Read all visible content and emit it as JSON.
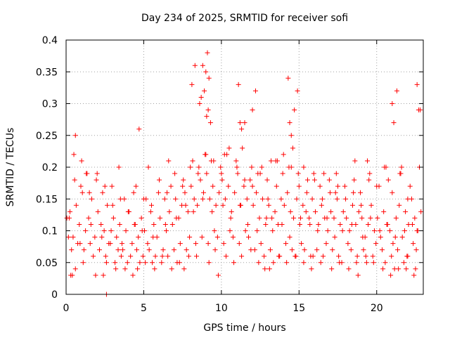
{
  "chart_data": {
    "type": "scatter",
    "title": "Day 234 of 2025, SRMTID for receiver sofi",
    "xlabel": "GPS time / hours",
    "ylabel": "SRMTID / TECUs",
    "xlim": [
      0,
      23
    ],
    "ylim": [
      0,
      0.4
    ],
    "xticks": [
      0,
      5,
      10,
      15,
      20
    ],
    "xtick_labels": [
      "0",
      "5",
      "10",
      "15",
      "20"
    ],
    "yticks": [
      0,
      0.05,
      0.1,
      0.15,
      0.2,
      0.25,
      0.3,
      0.35,
      0.4
    ],
    "ytick_labels": [
      "0",
      "0.05",
      "0.1",
      "0.15",
      "0.2",
      "0.25",
      "0.3",
      "0.35",
      "0.4"
    ],
    "grid": true,
    "legend": "none",
    "marker": "plus",
    "color": "#ff0000",
    "series": [
      {
        "name": "SRMTID",
        "x": [
          0.05,
          0.25,
          0.45,
          0.65,
          0.85,
          1.05,
          1.25,
          1.45,
          1.65,
          1.85,
          2.05,
          2.25,
          2.45,
          2.65,
          2.85,
          3.05,
          3.25,
          3.45,
          3.65,
          3.85,
          4.05,
          4.25,
          4.45,
          4.65,
          4.85,
          5.05,
          5.25,
          5.45,
          5.65,
          5.85,
          6.05,
          6.25,
          6.45,
          6.65,
          6.85,
          7.05,
          7.25,
          7.45,
          7.65,
          7.85,
          8.05,
          8.25,
          8.45,
          8.65,
          8.85,
          9.05,
          9.25,
          9.45,
          9.65,
          9.85,
          10.05,
          10.25,
          10.45,
          10.65,
          10.85,
          11.05,
          11.25,
          11.45,
          11.65,
          11.85,
          12.05,
          12.25,
          12.45,
          12.65,
          12.85,
          13.05,
          13.25,
          13.45,
          13.65,
          13.85,
          14.05,
          14.25,
          14.45,
          14.65,
          14.85,
          15.05,
          15.25,
          15.45,
          15.65,
          15.85,
          16.05,
          16.25,
          16.45,
          16.65,
          16.85,
          17.05,
          17.25,
          17.45,
          17.65,
          17.85,
          18.05,
          18.25,
          18.45,
          18.65,
          18.85,
          19.05,
          19.25,
          19.45,
          19.65,
          19.85,
          20.05,
          20.25,
          20.45,
          20.65,
          20.85,
          21.05,
          21.25,
          21.45,
          21.65,
          21.85,
          22.05,
          22.25,
          22.45,
          22.65,
          22.85,
          0.15,
          0.35,
          0.55,
          0.75,
          0.95,
          1.15,
          1.35,
          1.55,
          1.75,
          1.95,
          2.15,
          2.35,
          2.55,
          2.75,
          2.95,
          3.15,
          3.35,
          3.55,
          3.75,
          3.95,
          4.15,
          4.35,
          4.55,
          4.75,
          4.95,
          5.15,
          5.35,
          5.55,
          5.75,
          5.95,
          6.15,
          6.35,
          6.55,
          6.75,
          6.95,
          7.15,
          7.35,
          7.55,
          7.75,
          7.95,
          8.15,
          8.35,
          8.55,
          8.75,
          8.95,
          9.15,
          9.35,
          9.55,
          9.75,
          9.95,
          10.15,
          10.35,
          10.55,
          10.75,
          10.95,
          11.15,
          11.35,
          11.55,
          11.75,
          11.95,
          12.15,
          12.35,
          12.55,
          12.75,
          12.95,
          13.15,
          13.35,
          13.55,
          13.75,
          13.95,
          14.15,
          14.35,
          14.55,
          14.75,
          14.95,
          15.15,
          15.35,
          15.55,
          15.75,
          15.95,
          16.15,
          16.35,
          16.55,
          16.75,
          16.95,
          17.15,
          17.35,
          17.55,
          17.75,
          17.95,
          18.15,
          18.35,
          18.55,
          18.75,
          18.95,
          19.15,
          19.35,
          19.55,
          19.75,
          19.95,
          20.15,
          20.35,
          20.55,
          20.75,
          20.95,
          21.15,
          21.35,
          21.55,
          21.75,
          21.95,
          22.15,
          22.35,
          22.55,
          22.75,
          0.5,
          1.0,
          1.5,
          2.0,
          2.5,
          3.0,
          3.5,
          4.0,
          4.5,
          5.0,
          5.5,
          6.0,
          6.5,
          7.0,
          7.5,
          8.0,
          8.5,
          9.0,
          9.5,
          10.0,
          10.5,
          11.0,
          11.5,
          12.0,
          12.5,
          13.0,
          13.5,
          14.0,
          14.5,
          15.0,
          15.5,
          16.0,
          16.5,
          17.0,
          17.5,
          18.0,
          18.5,
          19.0,
          19.5,
          20.0,
          20.5,
          21.0,
          21.5,
          22.0,
          22.5,
          0.3,
          0.6,
          1.1,
          1.9,
          2.6,
          3.2,
          3.8,
          4.3,
          5.1,
          5.7,
          6.2,
          6.8,
          7.3,
          7.9,
          8.4,
          9.2,
          9.6,
          10.3,
          10.8,
          11.3,
          11.9,
          12.4,
          13.1,
          13.7,
          14.2,
          14.8,
          15.3,
          15.9,
          16.4,
          17.1,
          17.6,
          18.2,
          18.7,
          19.3,
          19.8,
          20.4,
          20.9,
          21.4,
          22.0,
          22.6,
          0.2,
          0.9,
          1.6,
          2.3,
          2.9,
          3.6,
          4.4,
          4.9,
          5.6,
          6.4,
          7.1,
          7.7,
          8.2,
          8.8,
          9.4,
          10.1,
          10.6,
          11.2,
          11.7,
          12.3,
          12.9,
          13.3,
          13.9,
          14.4,
          15.1,
          15.7,
          16.2,
          16.8,
          17.3,
          17.8,
          18.4,
          19.1,
          19.6,
          20.2,
          20.7,
          21.2,
          21.8,
          22.3,
          22.8,
          8.1,
          8.3,
          8.6,
          8.9,
          9.0,
          9.1,
          9.2,
          9.3,
          8.7,
          8.8,
          9.05,
          9.15,
          11.1,
          11.2,
          11.3,
          11.5,
          12.0,
          12.2,
          14.3,
          14.4,
          14.5,
          14.6,
          14.7,
          14.9,
          21.0,
          21.1,
          21.3,
          22.6,
          22.7,
          0.6,
          4.7,
          2.6,
          13.6,
          5.3,
          10.2,
          13.2,
          15.3,
          17.4,
          19.4,
          21.6,
          1.3,
          3.4,
          6.6,
          12.6,
          16.6,
          18.6,
          20.6,
          22.4,
          0.4,
          2.4,
          4.6,
          7.6,
          9.8,
          12.8,
          15.8,
          18.8,
          21.9
        ],
        "y": [
          0.12,
          0.13,
          0.09,
          0.14,
          0.11,
          0.16,
          0.1,
          0.12,
          0.15,
          0.09,
          0.13,
          0.11,
          0.1,
          0.14,
          0.08,
          0.12,
          0.09,
          0.11,
          0.07,
          0.1,
          0.13,
          0.08,
          0.11,
          0.09,
          0.12,
          0.1,
          0.08,
          0.13,
          0.11,
          0.09,
          0.12,
          0.07,
          0.1,
          0.13,
          0.11,
          0.15,
          0.12,
          0.14,
          0.16,
          0.13,
          0.17,
          0.15,
          0.14,
          0.18,
          0.16,
          0.19,
          0.15,
          0.17,
          0.14,
          0.16,
          0.18,
          0.15,
          0.17,
          0.13,
          0.16,
          0.19,
          0.14,
          0.17,
          0.15,
          0.18,
          0.14,
          0.16,
          0.12,
          0.15,
          0.11,
          0.14,
          0.12,
          0.13,
          0.11,
          0.15,
          0.14,
          0.16,
          0.13,
          0.12,
          0.15,
          0.11,
          0.14,
          0.13,
          0.12,
          0.15,
          0.13,
          0.11,
          0.14,
          0.12,
          0.1,
          0.13,
          0.12,
          0.15,
          0.11,
          0.13,
          0.12,
          0.1,
          0.14,
          0.11,
          0.13,
          0.12,
          0.09,
          0.11,
          0.14,
          0.1,
          0.12,
          0.09,
          0.13,
          0.11,
          0.1,
          0.08,
          0.12,
          0.14,
          0.09,
          0.13,
          0.11,
          0.15,
          0.12,
          0.1,
          0.13,
          0.09,
          0.07,
          0.18,
          0.08,
          0.17,
          0.07,
          0.19,
          0.08,
          0.06,
          0.18,
          0.07,
          0.16,
          0.06,
          0.08,
          0.17,
          0.05,
          0.07,
          0.06,
          0.15,
          0.05,
          0.06,
          0.16,
          0.07,
          0.05,
          0.06,
          0.15,
          0.07,
          0.05,
          0.06,
          0.16,
          0.05,
          0.15,
          0.06,
          0.17,
          0.07,
          0.05,
          0.08,
          0.18,
          0.07,
          0.09,
          0.21,
          0.08,
          0.2,
          0.09,
          0.22,
          0.08,
          0.21,
          0.1,
          0.09,
          0.2,
          0.08,
          0.22,
          0.1,
          0.09,
          0.21,
          0.08,
          0.23,
          0.1,
          0.09,
          0.2,
          0.07,
          0.19,
          0.08,
          0.06,
          0.18,
          0.07,
          0.05,
          0.17,
          0.06,
          0.19,
          0.08,
          0.2,
          0.07,
          0.06,
          0.19,
          0.08,
          0.07,
          0.18,
          0.06,
          0.19,
          0.07,
          0.17,
          0.06,
          0.08,
          0.18,
          0.07,
          0.16,
          0.06,
          0.05,
          0.17,
          0.08,
          0.07,
          0.18,
          0.06,
          0.16,
          0.07,
          0.05,
          0.19,
          0.06,
          0.08,
          0.17,
          0.07,
          0.05,
          0.18,
          0.06,
          0.04,
          0.07,
          0.19,
          0.05,
          0.06,
          0.17,
          0.08,
          0.07,
          0.2,
          0.22,
          0.21,
          0.16,
          0.19,
          0.17,
          0.14,
          0.15,
          0.13,
          0.17,
          0.15,
          0.14,
          0.18,
          0.16,
          0.19,
          0.17,
          0.2,
          0.19,
          0.22,
          0.21,
          0.19,
          0.23,
          0.2,
          0.18,
          0.17,
          0.19,
          0.15,
          0.21,
          0.22,
          0.2,
          0.17,
          0.16,
          0.18,
          0.15,
          0.16,
          0.17,
          0.15,
          0.16,
          0.14,
          0.18,
          0.17,
          0.2,
          0.16,
          0.19,
          0.15,
          0.04,
          0.03,
          0.04,
          0.05,
          0.03,
          0.05,
          0.04,
          0.04,
          0.03,
          0.05,
          0.04,
          0.06,
          0.04,
          0.05,
          0.06,
          0.06,
          0.05,
          0.07,
          0.06,
          0.05,
          0.06,
          0.07,
          0.05,
          0.04,
          0.06,
          0.05,
          0.06,
          0.05,
          0.06,
          0.05,
          0.04,
          0.05,
          0.04,
          0.05,
          0.06,
          0.05,
          0.04,
          0.03,
          0.04,
          0.06,
          0.1,
          0.12,
          0.08,
          0.11,
          0.09,
          0.1,
          0.08,
          0.11,
          0.1,
          0.09,
          0.11,
          0.12,
          0.14,
          0.13,
          0.15,
          0.13,
          0.14,
          0.12,
          0.14,
          0.11,
          0.1,
          0.12,
          0.1,
          0.11,
          0.09,
          0.12,
          0.11,
          0.1,
          0.12,
          0.09,
          0.1,
          0.11,
          0.09,
          0.12,
          0.1,
          0.11,
          0.09,
          0.1,
          0.11,
          0.29,
          0.33,
          0.36,
          0.3,
          0.32,
          0.35,
          0.38,
          0.34,
          0.27,
          0.31,
          0.36,
          0.28,
          0.29,
          0.33,
          0.27,
          0.26,
          0.27,
          0.29,
          0.32,
          0.34,
          0.27,
          0.25,
          0.23,
          0.29,
          0.32,
          0.3,
          0.27,
          0.32,
          0.33,
          0.29,
          0.25,
          0.26,
          0.0,
          0.21,
          0.2,
          0.22,
          0.21,
          0.2,
          0.19,
          0.21,
          0.2,
          0.19,
          0.2,
          0.21,
          0.2,
          0.19,
          0.21,
          0.2,
          0.03,
          0.03,
          0.03,
          0.04,
          0.04,
          0.03,
          0.04,
          0.04,
          0.03,
          0.04
        ]
      }
    ]
  }
}
